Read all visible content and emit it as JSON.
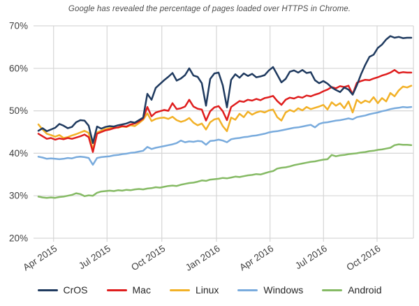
{
  "title": "Google has revealed the percentage of pages loaded over HTTPS in Chrome.",
  "chart_data": {
    "type": "line",
    "title": "Google has revealed the percentage of pages loaded over HTTPS in Chrome.",
    "x_axis": {
      "tick_labels": [
        "Apr 2015",
        "Jul 2015",
        "Oct 2015",
        "Jan 2016",
        "Apr 2016",
        "Jul 2016",
        "Oct 2016"
      ],
      "tick_index_positions": [
        3.62,
        16.38,
        29.45,
        42.5,
        55.28,
        68.05,
        80.83
      ],
      "interval": "weekly",
      "labels_rotated_deg": -33
    },
    "y_axis": {
      "ticks": [
        70,
        60,
        50,
        40,
        30,
        20
      ],
      "tick_labels": [
        "70%",
        "60%",
        "50%",
        "40%",
        "30%",
        "20%"
      ],
      "range": [
        20,
        70
      ],
      "unit": "%"
    },
    "grid": true,
    "grid_color": "#d6d6d6",
    "axis_label_color": "#3f3f3f",
    "legend_position": "bottom",
    "series": [
      {
        "name": "CrOS",
        "color": "#1f3a5f",
        "values": [
          45.3,
          45.9,
          45.2,
          45.6,
          46.0,
          46.9,
          46.5,
          45.9,
          46.2,
          47.3,
          47.8,
          47.7,
          46.5,
          42.4,
          46.3,
          45.8,
          46.2,
          46.4,
          46.3,
          46.6,
          46.8,
          47.0,
          47.4,
          47.2,
          47.8,
          48.4,
          54.0,
          52.6,
          55.4,
          56.3,
          57.2,
          58.0,
          58.9,
          57.1,
          57.6,
          58.4,
          60.0,
          58.3,
          58.0,
          56.5,
          51.2,
          57.5,
          58.8,
          59.0,
          56.0,
          50.8,
          57.3,
          58.6,
          57.8,
          58.8,
          58.2,
          58.7,
          57.9,
          58.1,
          58.4,
          59.5,
          60.3,
          58.5,
          56.7,
          57.5,
          59.2,
          59.5,
          59.0,
          59.6,
          58.9,
          59.1,
          57.2,
          56.5,
          57.0,
          56.4,
          55.5,
          54.9,
          54.4,
          55.5,
          55.0,
          53.8,
          56.0,
          58.6,
          60.8,
          62.7,
          63.2,
          64.8,
          65.6,
          66.8,
          67.6,
          67.2,
          67.4,
          67.1,
          67.2,
          67.2
        ]
      },
      {
        "name": "Mac",
        "color": "#df1d1d",
        "values": [
          44.6,
          44.0,
          43.4,
          43.6,
          43.2,
          43.5,
          43.3,
          43.6,
          43.4,
          43.7,
          44.0,
          44.4,
          43.8,
          40.3,
          44.6,
          45.0,
          45.4,
          45.6,
          45.9,
          46.1,
          46.4,
          46.3,
          46.8,
          47.0,
          47.5,
          48.2,
          50.9,
          48.7,
          49.6,
          49.9,
          50.2,
          50.0,
          51.8,
          50.4,
          50.6,
          51.0,
          52.6,
          51.0,
          50.5,
          50.3,
          47.7,
          49.9,
          50.8,
          51.1,
          49.9,
          47.8,
          50.9,
          51.6,
          52.3,
          52.1,
          52.6,
          52.4,
          52.8,
          52.5,
          53.0,
          53.2,
          53.5,
          52.3,
          51.4,
          52.6,
          53.1,
          52.9,
          53.3,
          53.1,
          53.6,
          53.4,
          53.8,
          54.1,
          54.6,
          55.0,
          55.6,
          55.3,
          55.8,
          55.6,
          55.9,
          53.9,
          56.6,
          57.0,
          57.3,
          57.2,
          57.6,
          57.9,
          58.3,
          58.6,
          59.0,
          59.6,
          58.9,
          59.1,
          59.0,
          59.0
        ]
      },
      {
        "name": "Linux",
        "color": "#f2b127",
        "values": [
          46.8,
          45.6,
          44.6,
          44.3,
          43.9,
          44.3,
          43.6,
          43.8,
          44.2,
          44.5,
          44.9,
          45.3,
          44.8,
          40.8,
          44.9,
          45.3,
          45.7,
          45.9,
          46.1,
          46.0,
          46.3,
          46.2,
          46.6,
          46.4,
          47.1,
          47.9,
          49.4,
          47.6,
          48.1,
          48.3,
          48.4,
          48.1,
          48.6,
          47.8,
          47.4,
          47.7,
          48.3,
          47.2,
          46.6,
          47.0,
          45.6,
          47.3,
          48.0,
          48.2,
          46.4,
          45.2,
          48.4,
          47.9,
          49.3,
          48.5,
          49.8,
          49.1,
          49.6,
          49.9,
          49.6,
          50.1,
          50.3,
          48.5,
          47.7,
          49.6,
          50.2,
          49.8,
          50.6,
          50.1,
          50.9,
          50.4,
          50.7,
          51.0,
          51.4,
          50.3,
          52.0,
          51.2,
          51.8,
          50.6,
          52.2,
          49.6,
          52.6,
          51.8,
          52.4,
          52.0,
          53.2,
          51.8,
          53.0,
          52.2,
          54.2,
          53.4,
          54.8,
          55.7,
          55.5,
          55.9
        ]
      },
      {
        "name": "Windows",
        "color": "#79abdd",
        "values": [
          39.2,
          39.0,
          38.7,
          38.8,
          38.7,
          38.6,
          38.7,
          38.9,
          38.8,
          39.1,
          39.2,
          39.1,
          38.9,
          37.3,
          38.9,
          39.1,
          39.2,
          39.3,
          39.5,
          39.6,
          39.8,
          39.9,
          40.1,
          40.2,
          40.4,
          40.6,
          41.5,
          41.0,
          41.3,
          41.5,
          41.7,
          41.9,
          42.1,
          42.4,
          43.0,
          42.6,
          42.8,
          42.7,
          42.9,
          42.8,
          42.0,
          42.9,
          43.0,
          43.2,
          43.0,
          42.6,
          43.3,
          43.5,
          43.6,
          43.8,
          43.9,
          44.1,
          44.2,
          44.4,
          44.6,
          44.9,
          45.1,
          45.2,
          45.4,
          45.6,
          45.8,
          46.0,
          46.1,
          46.3,
          46.5,
          46.7,
          46.1,
          46.9,
          47.2,
          47.3,
          47.5,
          47.7,
          47.8,
          48.0,
          48.2,
          48.0,
          48.5,
          48.7,
          48.9,
          49.2,
          49.4,
          49.6,
          49.9,
          50.1,
          50.4,
          50.6,
          50.7,
          50.9,
          50.8,
          50.9
        ]
      },
      {
        "name": "Android",
        "color": "#85ba64",
        "values": [
          29.8,
          29.6,
          29.5,
          29.6,
          29.5,
          29.7,
          29.8,
          30.0,
          30.2,
          30.6,
          30.4,
          29.9,
          30.1,
          30.0,
          30.7,
          31.0,
          31.1,
          31.2,
          31.1,
          31.3,
          31.2,
          31.4,
          31.3,
          31.5,
          31.6,
          31.5,
          31.7,
          31.8,
          32.0,
          31.9,
          32.1,
          32.3,
          32.4,
          32.3,
          32.6,
          32.8,
          33.0,
          33.1,
          33.3,
          33.6,
          33.5,
          33.8,
          33.9,
          34.0,
          34.2,
          34.1,
          34.3,
          34.5,
          34.4,
          34.6,
          34.8,
          34.9,
          35.1,
          35.0,
          35.3,
          35.6,
          35.8,
          36.4,
          36.6,
          36.7,
          36.9,
          37.2,
          37.4,
          37.6,
          37.8,
          38.0,
          38.1,
          38.3,
          38.5,
          38.6,
          39.6,
          39.3,
          39.5,
          39.6,
          39.8,
          39.9,
          40.0,
          40.2,
          40.3,
          40.5,
          40.6,
          40.8,
          40.9,
          41.1,
          41.3,
          41.9,
          42.1,
          42.0,
          42.0,
          41.9
        ]
      }
    ]
  }
}
